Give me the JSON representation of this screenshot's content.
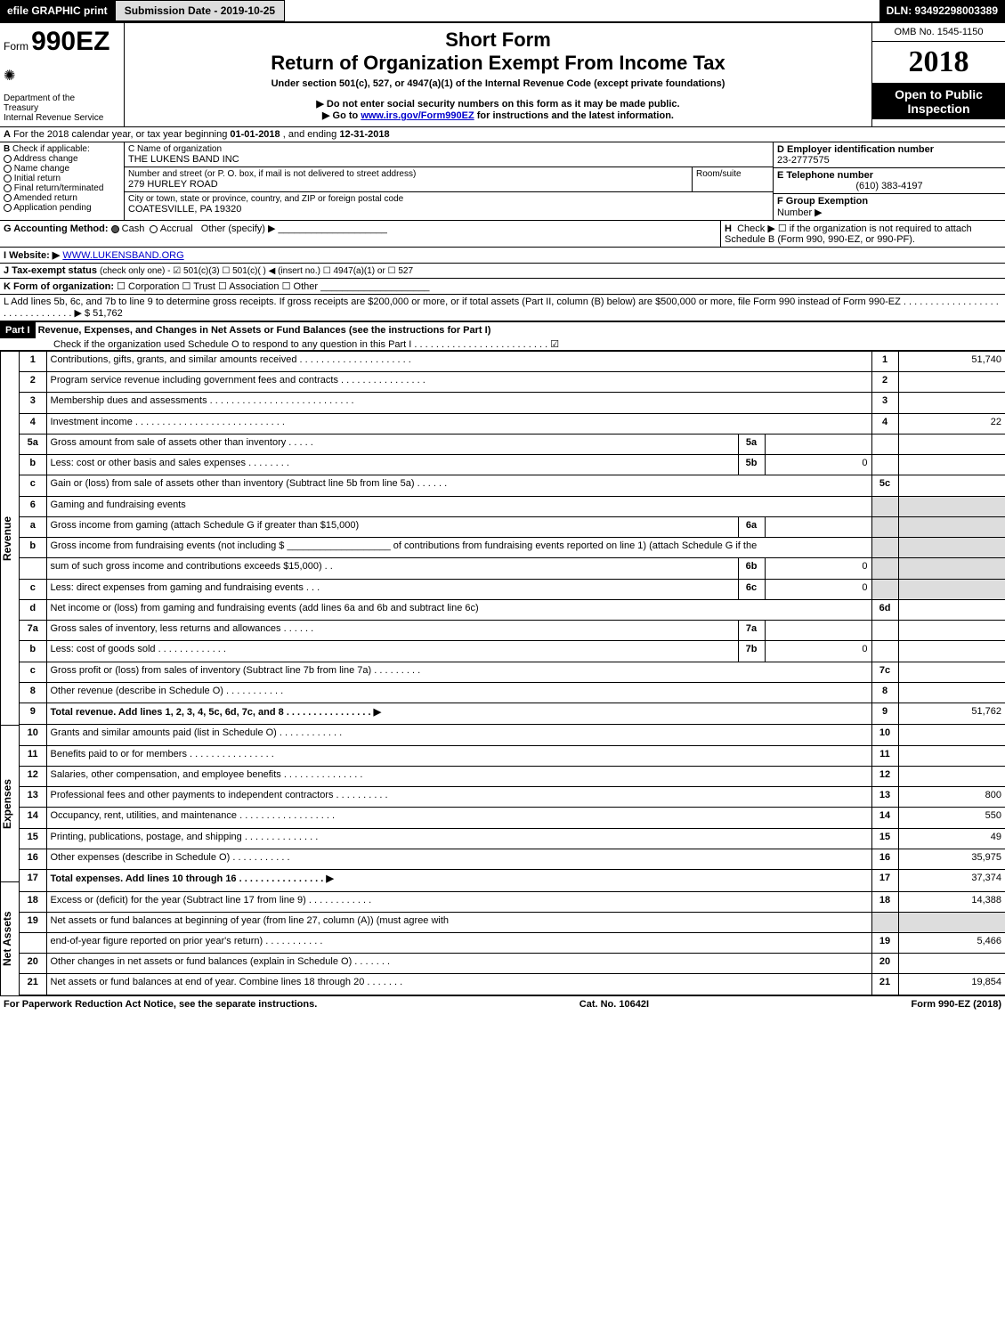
{
  "top": {
    "efile": "efile GRAPHIC print",
    "submission_date_label": "Submission Date - 2019-10-25",
    "dln_label": "DLN: 93492298003389"
  },
  "header": {
    "form_prefix": "Form",
    "form_number": "990EZ",
    "dept_of": "Department of the",
    "treasury": "Treasury",
    "irs": "Internal Revenue Service",
    "short_form": "Short Form",
    "return_title": "Return of Organization Exempt From Income Tax",
    "under_section": "Under section 501(c), 527, or 4947(a)(1) of the Internal Revenue Code (except private foundations)",
    "no_ssn": "▶ Do not enter social security numbers on this form as it may be made public.",
    "goto": "▶ Go to ",
    "goto_link": "www.irs.gov/Form990EZ",
    "goto_suffix": " for instructions and the latest information.",
    "omb": "OMB No. 1545-1150",
    "year": "2018",
    "open_public": "Open to Public",
    "inspection": "Inspection"
  },
  "lineA": {
    "label": "A",
    "text_prefix": "For the 2018 calendar year, or tax year beginning ",
    "begin_date": "01-01-2018",
    "mid": " , and ending ",
    "end_date": "12-31-2018"
  },
  "checkB": {
    "label": "B",
    "text": "Check if applicable:",
    "items": [
      "Address change",
      "Name change",
      "Initial return",
      "Final return/terminated",
      "Amended return",
      "Application pending"
    ]
  },
  "org": {
    "c_label": "C Name of organization",
    "name": "THE LUKENS BAND INC",
    "street_label": "Number and street (or P. O. box, if mail is not delivered to street address)",
    "room_label": "Room/suite",
    "street": "279 HURLEY ROAD",
    "city_label": "City or town, state or province, country, and ZIP or foreign postal code",
    "city": "COATESVILLE, PA  19320"
  },
  "right_ids": {
    "d_label": "D Employer identification number",
    "ein": "23-2777575",
    "e_label": "E Telephone number",
    "phone": "(610) 383-4197",
    "f_label": "F Group Exemption",
    "f_label2": "Number  ▶"
  },
  "lineG": {
    "label": "G Accounting Method:",
    "cash": "Cash",
    "accrual": "Accrual",
    "other": "Other (specify) ▶",
    "h_label": "H",
    "h_text": "Check ▶   ☐  if the organization is not required to attach Schedule B (Form 990, 990-EZ, or 990-PF)."
  },
  "lineI": {
    "label": "I Website: ▶",
    "website": "WWW.LUKENSBAND.ORG"
  },
  "lineJ": {
    "label": "J Tax-exempt status",
    "text": " (check only one) -  ☑ 501(c)(3)  ☐ 501(c)(  ) ◀ (insert no.)  ☐ 4947(a)(1) or  ☐ 527"
  },
  "lineK": {
    "label": "K Form of organization:",
    "options": "  ☐ Corporation   ☐ Trust   ☐ Association   ☐ Other"
  },
  "lineL": {
    "text": "L Add lines 5b, 6c, and 7b to line 9 to determine gross receipts. If gross receipts are $200,000 or more, or if total assets (Part II, column (B) below) are $500,000 or more, file Form 990 instead of Form 990-EZ  . . . . . . . . . . . . . . . . . . . . . . . . . . . . . . .  ▶ $ 51,762"
  },
  "part1": {
    "label": "Part I",
    "title": "Revenue, Expenses, and Changes in Net Assets or Fund Balances (see the instructions for Part I)",
    "check_text": "Check if the organization used Schedule O to respond to any question in this Part I . . . . . . . . . . . . . . . . . . . . . . . . .  ☑"
  },
  "sections": {
    "revenue": "Revenue",
    "expenses": "Expenses",
    "netassets": "Net Assets"
  },
  "lines": [
    {
      "n": "1",
      "desc": "Contributions, gifts, grants, and similar amounts received . . . . . . . . . . . . . . . . . . . . .",
      "rn": "1",
      "rv": "51,740"
    },
    {
      "n": "2",
      "desc": "Program service revenue including government fees and contracts . . . . . . . . . . . . . . . .",
      "rn": "2",
      "rv": ""
    },
    {
      "n": "3",
      "desc": "Membership dues and assessments . . . . . . . . . . . . . . . . . . . . . . . . . . .",
      "rn": "3",
      "rv": ""
    },
    {
      "n": "4",
      "desc": "Investment income . . . . . . . . . . . . . . . . . . . . . . . . . . . .",
      "rn": "4",
      "rv": "22"
    },
    {
      "n": "5a",
      "desc": "Gross amount from sale of assets other than inventory . . . . .",
      "mn": "5a",
      "mv": ""
    },
    {
      "n": "b",
      "desc": "Less: cost or other basis and sales expenses . . . . . . . .",
      "mn": "5b",
      "mv": "0"
    },
    {
      "n": "c",
      "desc": "Gain or (loss) from sale of assets other than inventory (Subtract line 5b from line 5a)            . . . . . .",
      "rn": "5c",
      "rv": ""
    },
    {
      "n": "6",
      "desc": "Gaming and fundraising events",
      "shaded_right": true
    },
    {
      "n": "a",
      "desc": "Gross income from gaming (attach Schedule G if greater than $15,000)",
      "mn": "6a",
      "mv": "",
      "shaded_right": true
    },
    {
      "n": "b",
      "desc": "Gross income from fundraising events (not including $ ___________________ of contributions from fundraising events reported on line 1) (attach Schedule G if the",
      "shaded_right": true
    },
    {
      "n": "",
      "desc": "sum of such gross income and contributions exceeds $15,000)        . .",
      "mn": "6b",
      "mv": "0",
      "shaded_right": true
    },
    {
      "n": "c",
      "desc": "Less: direct expenses from gaming and fundraising events         . . .",
      "mn": "6c",
      "mv": "0",
      "shaded_right": true
    },
    {
      "n": "d",
      "desc": "Net income or (loss) from gaming and fundraising events (add lines 6a and 6b and subtract line 6c)",
      "rn": "6d",
      "rv": ""
    },
    {
      "n": "7a",
      "desc": "Gross sales of inventory, less returns and allowances         . . . . . .",
      "mn": "7a",
      "mv": ""
    },
    {
      "n": "b",
      "desc": "Less: cost of goods sold                       . . . . . . . . . . . . .",
      "mn": "7b",
      "mv": "0"
    },
    {
      "n": "c",
      "desc": "Gross profit or (loss) from sales of inventory (Subtract line 7b from line 7a)           . . . . . . . . .",
      "rn": "7c",
      "rv": ""
    },
    {
      "n": "8",
      "desc": "Other revenue (describe in Schedule O)                        . . . . . . . . . . .",
      "rn": "8",
      "rv": ""
    },
    {
      "n": "9",
      "desc": "Total revenue. Add lines 1, 2, 3, 4, 5c, 6d, 7c, and 8        . . . . . . . . . . . . . . . .  ▶",
      "bold": true,
      "rn": "9",
      "rv": "51,762"
    },
    {
      "n": "10",
      "desc": "Grants and similar amounts paid (list in Schedule O)          . . . . . . . . . . . .",
      "rn": "10",
      "rv": ""
    },
    {
      "n": "11",
      "desc": "Benefits paid to or for members                     . . . . . . . . . . . . . . . .",
      "rn": "11",
      "rv": ""
    },
    {
      "n": "12",
      "desc": "Salaries, other compensation, and employee benefits          . . . . . . . . . . . . . . .",
      "rn": "12",
      "rv": ""
    },
    {
      "n": "13",
      "desc": "Professional fees and other payments to independent contractors            . . . . . . . . . .",
      "rn": "13",
      "rv": "800"
    },
    {
      "n": "14",
      "desc": "Occupancy, rent, utilities, and maintenance         . . . . . . . . . . . . . . . . . .",
      "rn": "14",
      "rv": "550"
    },
    {
      "n": "15",
      "desc": "Printing, publications, postage, and shipping                 . . . . . . . . . . . . . .",
      "rn": "15",
      "rv": "49"
    },
    {
      "n": "16",
      "desc": "Other expenses (describe in Schedule O)                       . . . . . . . . . . .",
      "rn": "16",
      "rv": "35,975"
    },
    {
      "n": "17",
      "desc": "Total expenses. Add lines 10 through 16           . . . . . . . . . . . . . . . .  ▶",
      "bold": true,
      "rn": "17",
      "rv": "37,374"
    },
    {
      "n": "18",
      "desc": "Excess or (deficit) for the year (Subtract line 17 from line 9)           . . . . . . . . . . . .",
      "rn": "18",
      "rv": "14,388"
    },
    {
      "n": "19",
      "desc": "Net assets or fund balances at beginning of year (from line 27, column (A)) (must agree with",
      "shaded_right": true
    },
    {
      "n": "",
      "desc": "end-of-year figure reported on prior year's return)               . . . . . . . . . . .",
      "rn": "19",
      "rv": "5,466"
    },
    {
      "n": "20",
      "desc": "Other changes in net assets or fund balances (explain in Schedule O)            . . . . . . .",
      "rn": "20",
      "rv": ""
    },
    {
      "n": "21",
      "desc": "Net assets or fund balances at end of year. Combine lines 18 through 20              . . . . . . .",
      "rn": "21",
      "rv": "19,854"
    }
  ],
  "footer": {
    "paperwork": "For Paperwork Reduction Act Notice, see the separate instructions.",
    "catno": "Cat. No. 10642I",
    "formref": "Form 990-EZ (2018)"
  },
  "colors": {
    "black": "#000000",
    "grey_tab": "#dddddd",
    "shaded": "#dddddd",
    "link": "#0000cc"
  }
}
